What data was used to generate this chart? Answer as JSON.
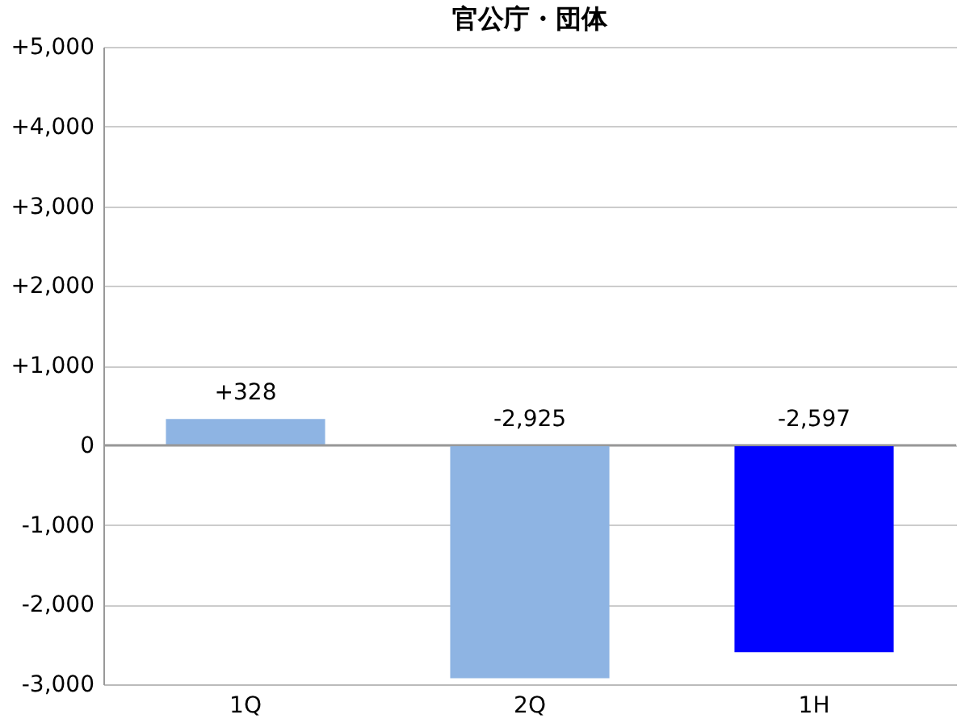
{
  "chart_data": {
    "type": "bar",
    "title": "官公庁・団体",
    "categories": [
      "1Q",
      "2Q",
      "1H"
    ],
    "values": [
      328,
      -2925,
      -2597
    ],
    "colors": [
      "#8eb4e3",
      "#8eb4e3",
      "#0000ff"
    ],
    "value_labels": [
      "+328",
      "-2,925",
      "-2,597"
    ],
    "ylim": [
      -3000,
      5000
    ],
    "yticks": [
      {
        "value": -3000,
        "label": "-3,000"
      },
      {
        "value": -2000,
        "label": "-2,000"
      },
      {
        "value": -1000,
        "label": "-1,000"
      },
      {
        "value": 0,
        "label": "0"
      },
      {
        "value": 1000,
        "label": "+1,000"
      },
      {
        "value": 2000,
        "label": "+2,000"
      },
      {
        "value": 3000,
        "label": "+3,000"
      },
      {
        "value": 4000,
        "label": "+4,000"
      },
      {
        "value": 5000,
        "label": "+5,000"
      }
    ],
    "grid": "y"
  }
}
